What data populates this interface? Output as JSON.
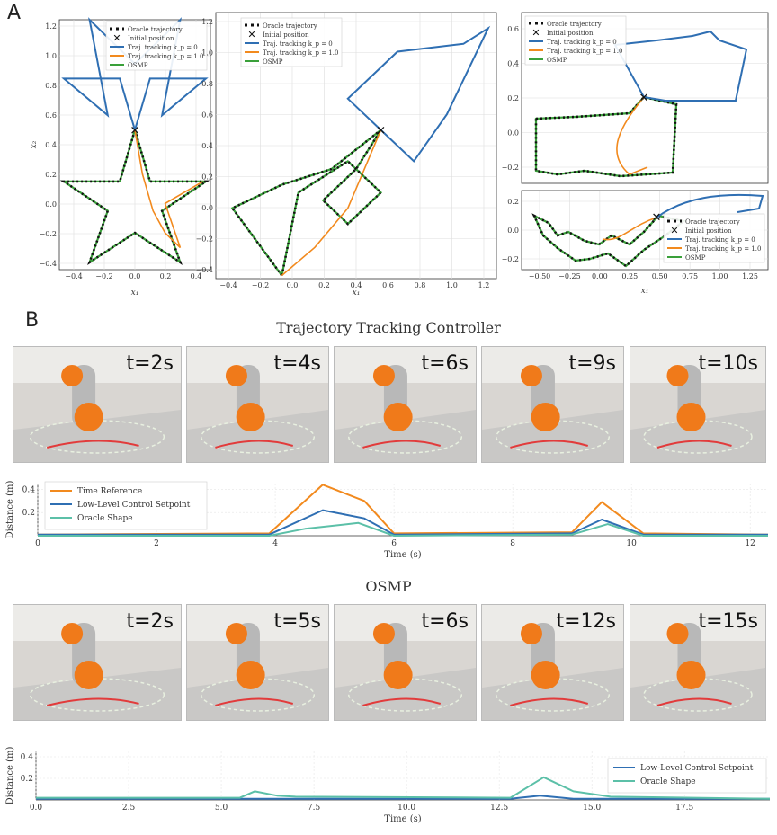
{
  "panel_a_label": "A",
  "panel_b_label": "B",
  "legend_entries": {
    "oracle": "Oracle trajectory",
    "initial": "Initial position",
    "tt0": "Traj. tracking k_p = 0",
    "tt1": "Traj. tracking k_p = 1.0",
    "osmp": "OSMP"
  },
  "colors": {
    "blue": "#2f6fb3",
    "orange": "#f28a1e",
    "green": "#3aa03a",
    "teal": "#5cc0a8",
    "oracle": "#111111"
  },
  "section_titles": {
    "ttc": "Trajectory Tracking Controller",
    "osmp": "OSMP"
  },
  "ttc_frames": [
    "t=2s",
    "t=4s",
    "t=6s",
    "t=9s",
    "t=10s"
  ],
  "osmp_frames": [
    "t=2s",
    "t=5s",
    "t=6s",
    "t=12s",
    "t=15s"
  ],
  "chart_data": [
    {
      "type": "line",
      "name": "star-plot",
      "xlabel": "x_1",
      "ylabel": "x_2",
      "xlim": [
        -0.5,
        0.5
      ],
      "ylim": [
        -0.45,
        1.25
      ],
      "xticks": [
        "−0.4",
        "−0.2",
        "0.0",
        "0.2",
        "0.4"
      ],
      "yticks": [
        "−0.4",
        "−0.2",
        "0.0",
        "0.2",
        "0.4",
        "0.6",
        "0.8",
        "1.0",
        "1.2"
      ],
      "series": [
        {
          "name": "Oracle trajectory",
          "color": "oracle",
          "x": [
            0,
            0.1,
            0.47,
            0.18,
            0.3,
            0,
            -0.3,
            -0.18,
            -0.47,
            -0.1,
            0
          ],
          "y": [
            0.5,
            0.15,
            0.15,
            -0.05,
            -0.4,
            -0.2,
            -0.4,
            -0.05,
            0.15,
            0.15,
            0.5
          ]
        },
        {
          "name": "Traj. tracking k_p = 0",
          "color": "blue",
          "x": [
            0,
            0.1,
            0.47,
            0.18,
            0.3,
            0,
            -0.3,
            -0.18,
            -0.47,
            -0.1,
            0
          ],
          "y": [
            0.5,
            0.85,
            0.85,
            0.6,
            1.25,
            0.95,
            1.25,
            0.6,
            0.85,
            0.85,
            0.5
          ]
        },
        {
          "name": "Traj. tracking k_p = 1.0",
          "color": "orange",
          "x": [
            0,
            0.05,
            0.12,
            0.2,
            0.3,
            0.2,
            0.45
          ],
          "y": [
            0.5,
            0.2,
            -0.05,
            -0.2,
            -0.3,
            0.0,
            0.15
          ]
        }
      ]
    },
    {
      "type": "line",
      "name": "flame-plot",
      "xlabel": "x_1",
      "ylabel": "",
      "xlim": [
        -0.5,
        1.2
      ],
      "ylim": [
        -0.45,
        1.25
      ],
      "xticks": [
        "−0.4",
        "−0.2",
        "0.0",
        "0.2",
        "0.4",
        "0.6",
        "0.8",
        "1.0",
        "1.2"
      ],
      "yticks": [
        "−0.4",
        "−0.2",
        "0.0",
        "0.2",
        "0.4",
        "0.6",
        "0.8",
        "1.0",
        "1.2"
      ],
      "series": [
        {
          "name": "Oracle trajectory",
          "color": "oracle",
          "x": [
            -0.1,
            -0.4,
            -0.1,
            0.2,
            0.5,
            0.35,
            0.15,
            0.3,
            0.5,
            0.3,
            0.0,
            -0.1
          ],
          "y": [
            -0.43,
            0.0,
            0.15,
            0.25,
            0.5,
            0.25,
            0.05,
            -0.1,
            0.1,
            0.3,
            0.1,
            -0.43
          ]
        },
        {
          "name": "Traj. tracking k_p = 0",
          "color": "blue",
          "x": [
            0.5,
            0.3,
            0.6,
            1.0,
            1.15,
            0.9,
            0.7,
            0.5
          ],
          "y": [
            0.5,
            0.7,
            1.0,
            1.05,
            1.15,
            0.6,
            0.3,
            0.5
          ]
        },
        {
          "name": "Traj. tracking k_p = 1.0",
          "color": "orange",
          "x": [
            -0.1,
            0.1,
            0.3,
            0.4,
            0.5
          ],
          "y": [
            -0.43,
            -0.25,
            0.0,
            0.25,
            0.5
          ]
        }
      ]
    },
    {
      "type": "line",
      "name": "box-plot",
      "xlabel": "",
      "ylabel": "",
      "xlim": [
        0,
        1
      ],
      "ylim": [
        -0.25,
        0.75
      ],
      "xticks": [],
      "yticks": [
        "−0.2",
        "0.0",
        "0.2",
        "0.4",
        "0.6"
      ],
      "series": []
    },
    {
      "type": "line",
      "name": "bat-plot",
      "xlabel": "x_1",
      "ylabel": "",
      "xlim": [
        -0.6,
        1.25
      ],
      "ylim": [
        -0.25,
        0.3
      ],
      "xticks": [
        "−0.50",
        "−0.25",
        "0.00",
        "0.25",
        "0.50",
        "0.75",
        "1.00",
        "1.25"
      ],
      "yticks": [
        "−0.2",
        "0.0",
        "0.2"
      ],
      "series": []
    },
    {
      "type": "line",
      "name": "ttc-distance",
      "xlabel": "Time (s)",
      "ylabel": "Distance (m)",
      "xlim": [
        0,
        12.3
      ],
      "ylim": [
        0,
        0.45
      ],
      "xticks": [
        "0",
        "2",
        "4",
        "6",
        "8",
        "10",
        "12"
      ],
      "yticks": [
        "0.2",
        "0.4"
      ],
      "series": [
        {
          "name": "Time Reference",
          "color": "orange",
          "x": [
            0,
            3.9,
            4.8,
            5.5,
            6.0,
            9.0,
            9.5,
            10.2,
            12.3
          ],
          "y": [
            0.01,
            0.02,
            0.44,
            0.3,
            0.02,
            0.03,
            0.29,
            0.02,
            0.01
          ]
        },
        {
          "name": "Low-Level Control Setpoint",
          "color": "blue",
          "x": [
            0,
            3.9,
            4.8,
            5.5,
            6.0,
            9.0,
            9.5,
            10.2,
            12.3
          ],
          "y": [
            0.01,
            0.01,
            0.22,
            0.15,
            0.01,
            0.02,
            0.14,
            0.01,
            0.01
          ]
        },
        {
          "name": "Oracle Shape",
          "color": "teal",
          "x": [
            0,
            3.9,
            4.5,
            5.4,
            6.0,
            9.0,
            9.6,
            10.2,
            12.3
          ],
          "y": [
            0.0,
            0.0,
            0.06,
            0.11,
            0.0,
            0.01,
            0.1,
            0.0,
            0.0
          ]
        }
      ]
    },
    {
      "type": "line",
      "name": "osmp-distance",
      "xlabel": "Time (s)",
      "ylabel": "Distance (m)",
      "xlim": [
        0,
        19.8
      ],
      "ylim": [
        0,
        0.45
      ],
      "xticks": [
        "0.0",
        "2.5",
        "5.0",
        "7.5",
        "10.0",
        "12.5",
        "15.0",
        "17.5"
      ],
      "yticks": [
        "0.2",
        "0.4"
      ],
      "series": [
        {
          "name": "Low-Level Control Setpoint",
          "color": "blue",
          "x": [
            0,
            12.8,
            13.6,
            14.5,
            19.8
          ],
          "y": [
            0.01,
            0.01,
            0.04,
            0.01,
            0.01
          ]
        },
        {
          "name": "Oracle Shape",
          "color": "teal",
          "x": [
            0,
            5.5,
            5.9,
            6.5,
            7.0,
            12.8,
            13.7,
            14.5,
            15.5,
            19.8
          ],
          "y": [
            0.02,
            0.02,
            0.08,
            0.04,
            0.03,
            0.02,
            0.21,
            0.08,
            0.03,
            0.01
          ]
        }
      ]
    }
  ]
}
